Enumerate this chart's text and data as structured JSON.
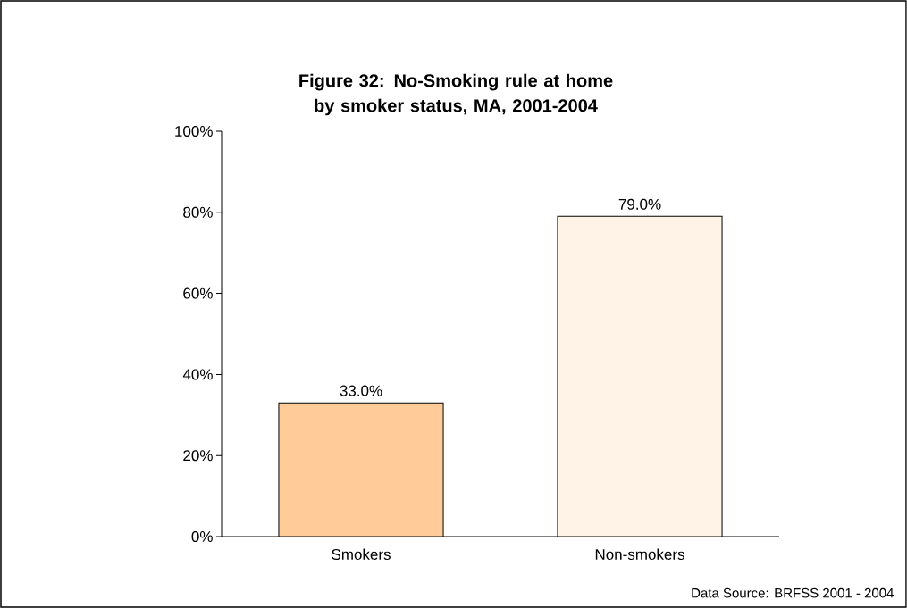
{
  "chart_data": {
    "type": "bar",
    "title": "Figure 32: No-Smoking rule at home by smoker status, MA, 2001-2004",
    "categories": [
      "Smokers",
      "Non-smokers"
    ],
    "values": [
      33.0,
      79.0
    ],
    "colors": [
      "#ffcc99",
      "#fff2e6"
    ],
    "value_labels": [
      "33.0%",
      "79.0%"
    ],
    "ylim": [
      0,
      100
    ],
    "yticks": [
      {
        "value": 0,
        "label": "0%"
      },
      {
        "value": 20,
        "label": "20%"
      },
      {
        "value": 40,
        "label": "40%"
      },
      {
        "value": 60,
        "label": "60%"
      },
      {
        "value": 80,
        "label": "80%"
      },
      {
        "value": 100,
        "label": "100%"
      }
    ],
    "annotations": [
      "Data Source: BRFSS 2001 - 2004"
    ]
  }
}
